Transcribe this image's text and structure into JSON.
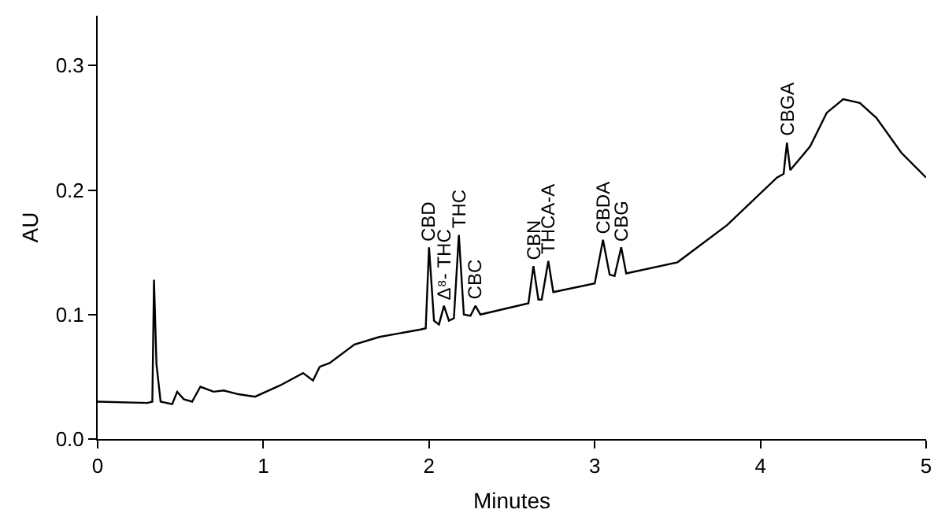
{
  "chart_data": {
    "type": "line",
    "xlabel": "Minutes",
    "ylabel": "AU",
    "x": [
      0,
      0.3,
      0.33,
      0.34,
      0.355,
      0.38,
      0.45,
      0.48,
      0.52,
      0.57,
      0.62,
      0.7,
      0.76,
      0.85,
      0.95,
      1.1,
      1.24,
      1.3,
      1.34,
      1.4,
      1.55,
      1.7,
      1.95,
      1.98,
      2.0,
      2.03,
      2.06,
      2.09,
      2.12,
      2.15,
      2.18,
      2.21,
      2.25,
      2.28,
      2.31,
      2.6,
      2.63,
      2.66,
      2.68,
      2.72,
      2.75,
      3.0,
      3.05,
      3.09,
      3.12,
      3.16,
      3.19,
      3.5,
      3.8,
      4.1,
      4.14,
      4.16,
      4.18,
      4.3,
      4.4,
      4.5,
      4.6,
      4.7,
      4.85,
      5.0
    ],
    "series": [
      {
        "color": "#000000",
        "values": [
          0.03,
          0.029,
          0.03,
          0.128,
          0.06,
          0.03,
          0.028,
          0.038,
          0.032,
          0.03,
          0.042,
          0.038,
          0.039,
          0.036,
          0.034,
          0.043,
          0.053,
          0.047,
          0.058,
          0.061,
          0.076,
          0.082,
          0.088,
          0.089,
          0.154,
          0.095,
          0.092,
          0.107,
          0.095,
          0.097,
          0.164,
          0.1,
          0.099,
          0.107,
          0.1,
          0.109,
          0.139,
          0.112,
          0.112,
          0.143,
          0.118,
          0.125,
          0.16,
          0.132,
          0.131,
          0.154,
          0.133,
          0.142,
          0.172,
          0.21,
          0.213,
          0.238,
          0.216,
          0.235,
          0.262,
          0.273,
          0.27,
          0.258,
          0.23,
          0.21
        ]
      }
    ],
    "xlim": [
      0,
      5
    ],
    "ylim": [
      0,
      0.34
    ],
    "xticks": [
      0,
      1,
      2,
      3,
      4,
      5
    ],
    "yticks": [
      {
        "value": 0,
        "label": "0.0"
      },
      0.1,
      0.2,
      0.3
    ],
    "grid": false,
    "legend": false,
    "marker": "none",
    "line_style": "solid",
    "annotations": [
      {
        "text": "CBD",
        "x": 2.0,
        "y": 0.154
      },
      {
        "text": "Δ⁸- THC",
        "x": 2.09,
        "y": 0.107
      },
      {
        "text": "THC",
        "x": 2.18,
        "y": 0.164
      },
      {
        "text": "CBC",
        "x": 2.28,
        "y": 0.107
      },
      {
        "text": "CBN",
        "x": 2.63,
        "y": 0.139
      },
      {
        "text": "THCA-A",
        "x": 2.72,
        "y": 0.143
      },
      {
        "text": "CBDA",
        "x": 3.05,
        "y": 0.16
      },
      {
        "text": "CBG",
        "x": 3.16,
        "y": 0.154
      },
      {
        "text": "CBGA",
        "x": 4.16,
        "y": 0.238
      }
    ]
  }
}
